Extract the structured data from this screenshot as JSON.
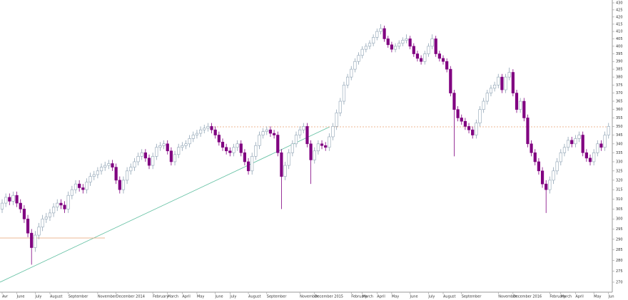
{
  "chart_data": {
    "type": "candlestick",
    "log": true,
    "up_color": "#ffffff",
    "up_edge": "#8fa3b4",
    "down_color": "#800080",
    "categories": [
      "Avr",
      null,
      null,
      null,
      "June",
      null,
      null,
      null,
      null,
      "July",
      null,
      null,
      null,
      "August",
      null,
      null,
      null,
      null,
      "September",
      null,
      null,
      null,
      null,
      null,
      null,
      null,
      "November",
      null,
      null,
      null,
      null,
      "December 2014",
      null,
      null,
      null,
      null,
      null,
      null,
      null,
      null,
      null,
      "February",
      null,
      null,
      null,
      "March",
      null,
      null,
      null,
      "April",
      null,
      null,
      null,
      "May",
      null,
      null,
      null,
      null,
      "June",
      null,
      null,
      null,
      "July",
      null,
      null,
      null,
      null,
      "August",
      null,
      null,
      null,
      null,
      "September",
      null,
      null,
      null,
      null,
      null,
      null,
      null,
      null,
      "November",
      null,
      null,
      null,
      "December 2015",
      null,
      null,
      null,
      null,
      null,
      null,
      null,
      null,
      null,
      "February",
      null,
      null,
      "March",
      null,
      null,
      null,
      "April",
      null,
      null,
      null,
      "May",
      null,
      null,
      null,
      null,
      "June",
      null,
      null,
      null,
      null,
      "July",
      null,
      null,
      null,
      "August",
      null,
      null,
      null,
      null,
      "September",
      null,
      null,
      null,
      null,
      null,
      null,
      null,
      null,
      null,
      "November",
      null,
      null,
      null,
      "December 2016",
      null,
      null,
      null,
      null,
      null,
      null,
      null,
      null,
      null,
      "February",
      null,
      null,
      "March",
      null,
      null,
      null,
      "April",
      null,
      null,
      null,
      null,
      "May",
      null,
      null,
      null,
      "Jun"
    ],
    "open": [
      305,
      308,
      311,
      309,
      312,
      308,
      305,
      300,
      293,
      286,
      292,
      296,
      300,
      301,
      303,
      306,
      308,
      307,
      305,
      312,
      315,
      318,
      316,
      315,
      319,
      322,
      323,
      325,
      327,
      328,
      329,
      327,
      320,
      315,
      320,
      325,
      327,
      330,
      333,
      335,
      332,
      328,
      333,
      338,
      339,
      340,
      336,
      330,
      334,
      338,
      339,
      340,
      343,
      345,
      346,
      348,
      349,
      350,
      348,
      345,
      341,
      338,
      336,
      335,
      338,
      340,
      335,
      330,
      325,
      333,
      339,
      345,
      347,
      348,
      346,
      345,
      335,
      322,
      328,
      335,
      340,
      345,
      348,
      350,
      340,
      331,
      336,
      340,
      339,
      338,
      344,
      350,
      358,
      365,
      375,
      380,
      385,
      390,
      394,
      398,
      400,
      402,
      406,
      410,
      412,
      405,
      401,
      398,
      400,
      402,
      404,
      405,
      400,
      395,
      392,
      390,
      395,
      400,
      405,
      395,
      392,
      390,
      385,
      370,
      360,
      355,
      353,
      350,
      348,
      345,
      352,
      360,
      365,
      370,
      373,
      375,
      380,
      372,
      380,
      383,
      370,
      360,
      365,
      355,
      340,
      335,
      330,
      325,
      318,
      315,
      320,
      325,
      330,
      335,
      338,
      342,
      340,
      343,
      345,
      335,
      332,
      330,
      335,
      340,
      338,
      345
    ],
    "high": [
      310,
      313,
      313,
      314,
      314,
      310,
      307,
      302,
      295,
      294,
      298,
      302,
      303,
      305,
      308,
      310,
      310,
      309,
      314,
      317,
      320,
      320,
      318,
      321,
      324,
      325,
      327,
      329,
      330,
      331,
      331,
      329,
      322,
      322,
      327,
      329,
      332,
      335,
      337,
      337,
      334,
      335,
      340,
      341,
      342,
      342,
      338,
      336,
      340,
      341,
      342,
      345,
      347,
      348,
      350,
      351,
      352,
      352,
      350,
      347,
      343,
      340,
      338,
      340,
      342,
      342,
      337,
      332,
      335,
      341,
      347,
      349,
      350,
      350,
      348,
      347,
      337,
      330,
      337,
      342,
      347,
      350,
      352,
      352,
      342,
      338,
      342,
      342,
      341,
      346,
      352,
      360,
      367,
      377,
      382,
      387,
      392,
      396,
      400,
      402,
      404,
      408,
      412,
      415,
      414,
      407,
      403,
      402,
      404,
      406,
      408,
      407,
      402,
      397,
      394,
      397,
      402,
      408,
      407,
      397,
      394,
      392,
      387,
      372,
      362,
      357,
      355,
      352,
      350,
      354,
      362,
      367,
      372,
      375,
      377,
      382,
      382,
      382,
      386,
      385,
      372,
      367,
      367,
      357,
      342,
      337,
      332,
      327,
      320,
      322,
      327,
      332,
      337,
      340,
      344,
      344,
      345,
      347,
      347,
      337,
      334,
      337,
      342,
      342,
      347,
      352
    ],
    "low": [
      303,
      306,
      307,
      307,
      306,
      303,
      298,
      291,
      278,
      284,
      290,
      294,
      298,
      299,
      301,
      304,
      305,
      303,
      303,
      310,
      313,
      314,
      313,
      313,
      317,
      320,
      321,
      323,
      325,
      326,
      325,
      318,
      313,
      313,
      318,
      323,
      325,
      328,
      331,
      330,
      326,
      326,
      331,
      336,
      337,
      334,
      328,
      328,
      332,
      336,
      337,
      338,
      341,
      343,
      344,
      346,
      347,
      346,
      343,
      339,
      336,
      334,
      333,
      333,
      336,
      333,
      328,
      323,
      323,
      331,
      337,
      343,
      345,
      344,
      343,
      333,
      305,
      320,
      326,
      333,
      338,
      343,
      346,
      338,
      318,
      329,
      334,
      337,
      336,
      336,
      342,
      348,
      356,
      363,
      373,
      378,
      383,
      388,
      392,
      396,
      398,
      400,
      404,
      408,
      403,
      399,
      396,
      396,
      398,
      400,
      402,
      398,
      393,
      390,
      388,
      388,
      393,
      398,
      393,
      390,
      388,
      383,
      368,
      333,
      353,
      351,
      348,
      346,
      343,
      343,
      350,
      358,
      363,
      368,
      371,
      373,
      370,
      370,
      378,
      368,
      358,
      358,
      353,
      338,
      333,
      328,
      323,
      316,
      303,
      313,
      318,
      323,
      328,
      333,
      336,
      338,
      338,
      341,
      333,
      330,
      328,
      328,
      333,
      336,
      336,
      343
    ],
    "close": [
      308,
      311,
      309,
      312,
      308,
      305,
      300,
      293,
      286,
      292,
      296,
      300,
      301,
      303,
      306,
      308,
      307,
      305,
      312,
      315,
      318,
      316,
      315,
      319,
      322,
      323,
      325,
      327,
      328,
      329,
      327,
      320,
      315,
      320,
      325,
      327,
      330,
      333,
      335,
      332,
      328,
      333,
      338,
      339,
      340,
      336,
      330,
      334,
      338,
      339,
      340,
      343,
      345,
      346,
      348,
      349,
      350,
      348,
      345,
      341,
      338,
      336,
      335,
      338,
      340,
      335,
      330,
      325,
      333,
      339,
      345,
      347,
      348,
      346,
      345,
      335,
      322,
      328,
      335,
      340,
      345,
      348,
      350,
      340,
      331,
      336,
      340,
      339,
      338,
      344,
      350,
      358,
      365,
      375,
      380,
      385,
      390,
      394,
      398,
      400,
      402,
      406,
      410,
      412,
      405,
      401,
      398,
      400,
      402,
      404,
      405,
      400,
      395,
      392,
      390,
      395,
      400,
      405,
      395,
      392,
      390,
      385,
      370,
      360,
      355,
      353,
      350,
      348,
      345,
      352,
      360,
      365,
      370,
      373,
      375,
      380,
      372,
      380,
      383,
      370,
      360,
      365,
      355,
      340,
      335,
      330,
      325,
      318,
      315,
      320,
      325,
      330,
      335,
      338,
      342,
      340,
      343,
      345,
      335,
      332,
      330,
      335,
      340,
      338,
      345,
      350
    ],
    "ylim": [
      270,
      430
    ],
    "yticks": [
      270,
      275,
      280,
      285,
      290,
      295,
      300,
      305,
      310,
      315,
      320,
      325,
      330,
      335,
      340,
      345,
      350,
      355,
      360,
      365,
      370,
      375,
      380,
      385,
      390,
      395,
      400,
      405,
      410,
      415,
      420,
      425,
      430
    ]
  }
}
